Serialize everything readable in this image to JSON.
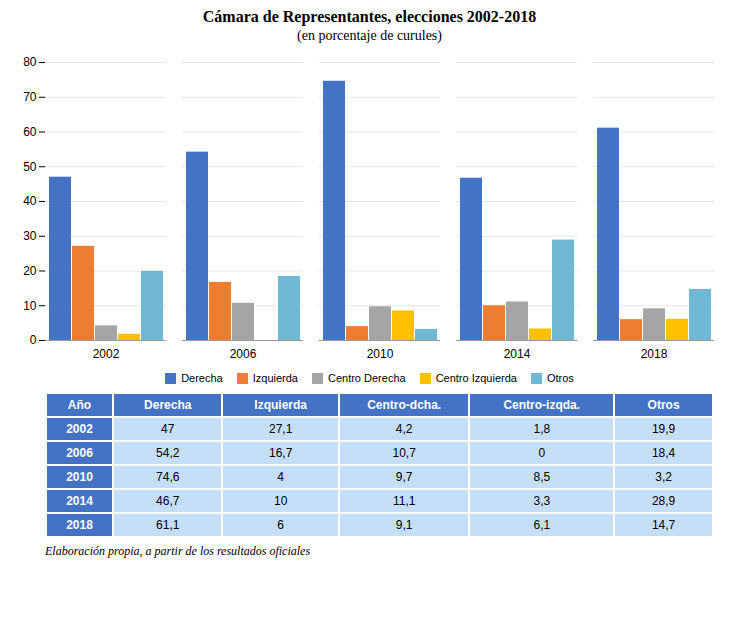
{
  "chart_data": {
    "type": "bar",
    "title": "Cámara de Representantes, elecciones 2002-2018",
    "subtitle": "(en porcentaje de curules)",
    "categories": [
      "2002",
      "2006",
      "2010",
      "2014",
      "2018"
    ],
    "series": [
      {
        "name": "Derecha",
        "color": "#4472C4",
        "values": [
          47.0,
          54.2,
          74.6,
          46.7,
          61.1
        ]
      },
      {
        "name": "Izquierda",
        "color": "#ED7D31",
        "values": [
          27.1,
          16.7,
          4.0,
          10.0,
          6.0
        ]
      },
      {
        "name": "Centro Derecha",
        "color": "#A5A5A5",
        "values": [
          4.2,
          10.7,
          9.7,
          11.1,
          9.1
        ]
      },
      {
        "name": "Centro Izquierda",
        "color": "#FFC000",
        "values": [
          1.8,
          0.0,
          8.5,
          3.3,
          6.1
        ]
      },
      {
        "name": "Otros",
        "color": "#70B8D4",
        "values": [
          19.9,
          18.4,
          3.2,
          28.9,
          14.7
        ]
      }
    ],
    "ylim": [
      0,
      80
    ],
    "yticks": [
      0,
      10,
      20,
      30,
      40,
      50,
      60,
      70,
      80
    ],
    "grid": true,
    "legend": "bottom",
    "table": {
      "headers": [
        "Año",
        "Derecha",
        "Izquierda",
        "Centro-dcha.",
        "Centro-izqda.",
        "Otros"
      ],
      "rows": [
        [
          "2002",
          "47",
          "27,1",
          "4,2",
          "1,8",
          "19,9"
        ],
        [
          "2006",
          "54,2",
          "16,7",
          "10,7",
          "0",
          "18,4"
        ],
        [
          "2010",
          "74,6",
          "4",
          "9,7",
          "8,5",
          "3,2"
        ],
        [
          "2014",
          "46,7",
          "10",
          "11,1",
          "3,3",
          "28,9"
        ],
        [
          "2018",
          "61,1",
          "6",
          "9,1",
          "6,1",
          "14,7"
        ]
      ]
    },
    "footnote": "Elaboración propia, a partir de los resultados oficiales"
  }
}
